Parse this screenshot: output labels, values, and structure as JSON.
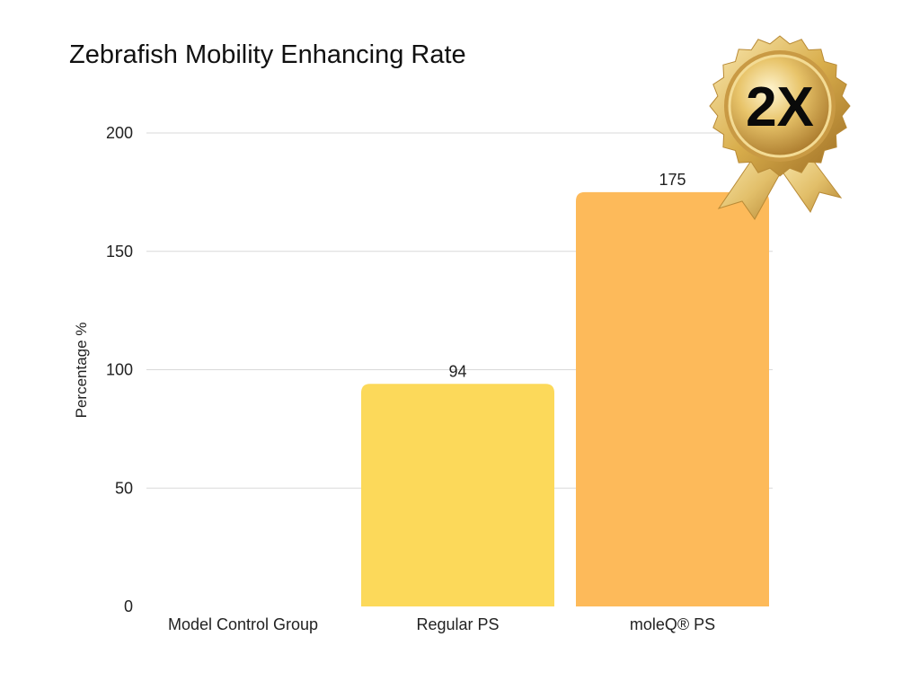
{
  "chart_data": {
    "type": "bar",
    "title": "Zebrafish Mobility Enhancing Rate",
    "xlabel": "",
    "ylabel": "Percentage %",
    "categories": [
      "Model Control Group",
      "Regular PS",
      "moleQ® PS"
    ],
    "values": [
      0,
      94,
      175
    ],
    "data_labels": [
      "",
      "94",
      "175"
    ],
    "bar_colors": [
      "#FCD95A",
      "#FCD95A",
      "#FDBA5A"
    ],
    "ylim": [
      0,
      200
    ],
    "yticks": [
      0,
      50,
      100,
      150,
      200
    ],
    "grid": true,
    "legend": "none"
  },
  "badge": {
    "text": "2X",
    "icon": "gold-award-ribbon-icon",
    "colors": {
      "gold_light": "#F6E3A6",
      "gold_mid": "#D9AE4C",
      "gold_dark": "#A8772A"
    }
  }
}
